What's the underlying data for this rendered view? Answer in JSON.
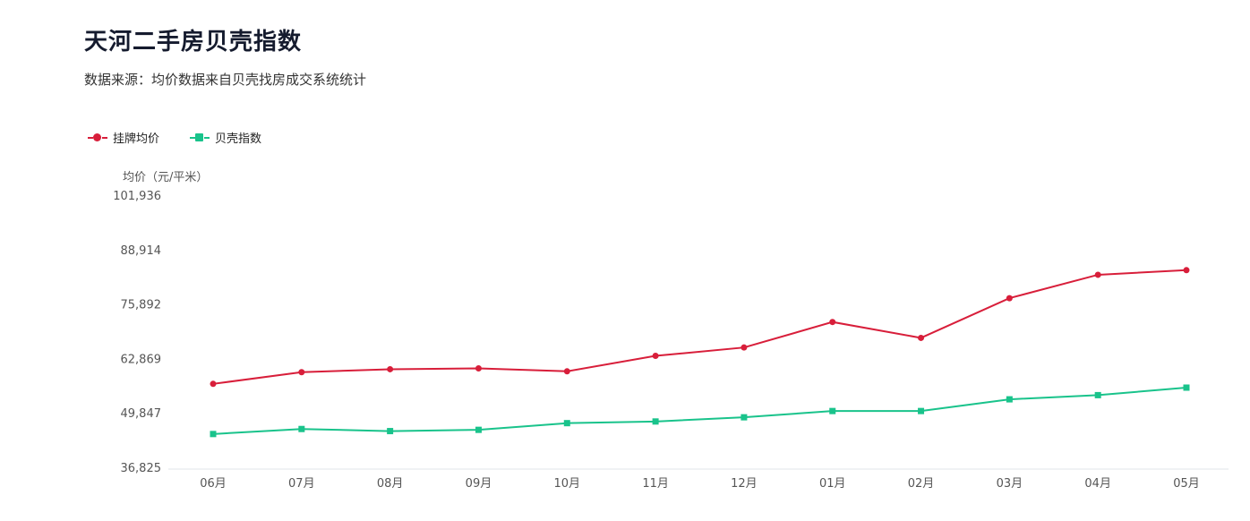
{
  "title": "天河二手房贝壳指数",
  "subtitle": "数据来源：均价数据来自贝壳找房成交系统统计",
  "legend": [
    {
      "name": "挂牌均价",
      "color": "#d81e3a",
      "icon": "circle-marker-icon"
    },
    {
      "name": "贝壳指数",
      "color": "#19c38b",
      "icon": "square-marker-icon"
    }
  ],
  "chart_data": {
    "type": "line",
    "ylabel": "均价（元/平米）",
    "xlabel": "",
    "categories": [
      "06月",
      "07月",
      "08月",
      "09月",
      "10月",
      "11月",
      "12月",
      "01月",
      "02月",
      "03月",
      "04月",
      "05月"
    ],
    "yticks": [
      "36,825",
      "49,847",
      "62,869",
      "75,892",
      "88,914",
      "101,936"
    ],
    "ylim": [
      36825,
      101936
    ],
    "grid": false,
    "legend_position": "top-left",
    "series": [
      {
        "name": "挂牌均价",
        "color": "#d81e3a",
        "marker": "circle",
        "values": [
          57000,
          59800,
          60500,
          60700,
          60000,
          63700,
          65700,
          71800,
          68000,
          77500,
          83100,
          84200
        ]
      },
      {
        "name": "贝壳指数",
        "color": "#19c38b",
        "marker": "square",
        "values": [
          45000,
          46200,
          45700,
          46000,
          47600,
          48000,
          49000,
          50500,
          50500,
          53300,
          54300,
          56100
        ]
      }
    ]
  }
}
